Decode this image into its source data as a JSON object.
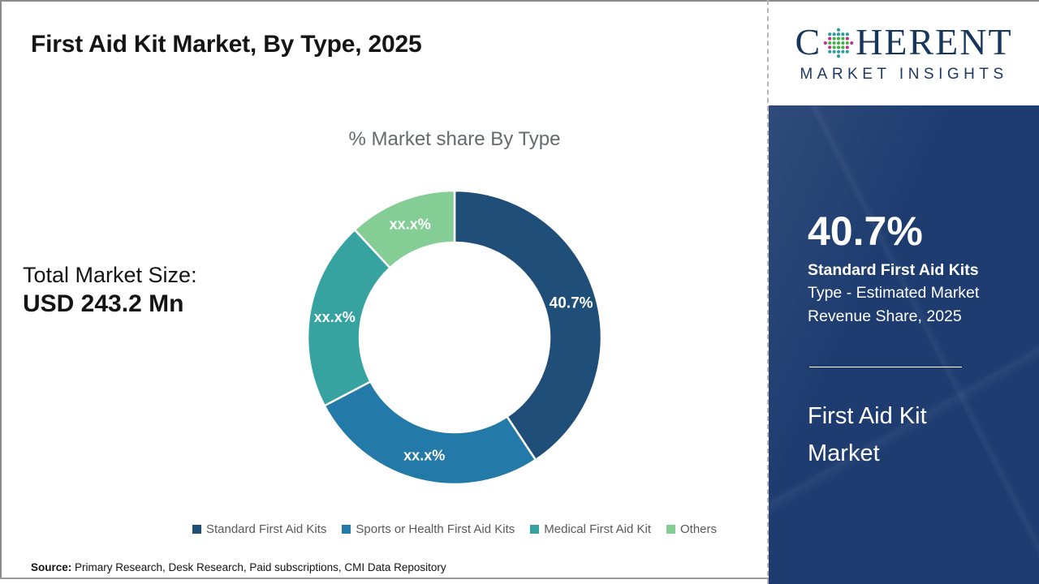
{
  "header": {
    "title": "First Aid Kit Market, By Type, 2025"
  },
  "logo": {
    "word_start": "C",
    "word_end": "HERENT",
    "subtitle": "MARKET INSIGHTS",
    "text_color": "#17365D",
    "globe_dot_colors": {
      "teal": "#2E9CA6",
      "green": "#43B049",
      "magenta": "#C2308C"
    }
  },
  "chart_data": {
    "type": "pie",
    "subtype": "donut",
    "title": "% Market share By Type",
    "legend_position": "bottom",
    "segments": [
      {
        "label": "Standard First Aid Kits",
        "value": 40.7,
        "display": "40.7%",
        "color": "#1F4E79"
      },
      {
        "label": "Sports or Health First Aid Kits",
        "value": 26.6,
        "display": "xx.x%",
        "color": "#2379A7"
      },
      {
        "label": "Medical First Aid Kit",
        "value": 20.8,
        "display": "xx.x%",
        "color": "#37A3A1"
      },
      {
        "label": "Others",
        "value": 11.9,
        "display": "xx.x%",
        "color": "#84CE96"
      }
    ]
  },
  "market_size": {
    "label": "Total Market Size:",
    "value": "USD 243.2 Mn"
  },
  "side_panel": {
    "bg_color": "#1E3C70",
    "stat_value": "40.7%",
    "stat_name": "Standard First Aid Kits",
    "stat_desc": "Type - Estimated Market Revenue Share, 2025",
    "panel_title": "First Aid Kit Market"
  },
  "source": {
    "label": "Source:",
    "text": " Primary Research, Desk Research, Paid subscriptions, CMI Data Repository"
  }
}
